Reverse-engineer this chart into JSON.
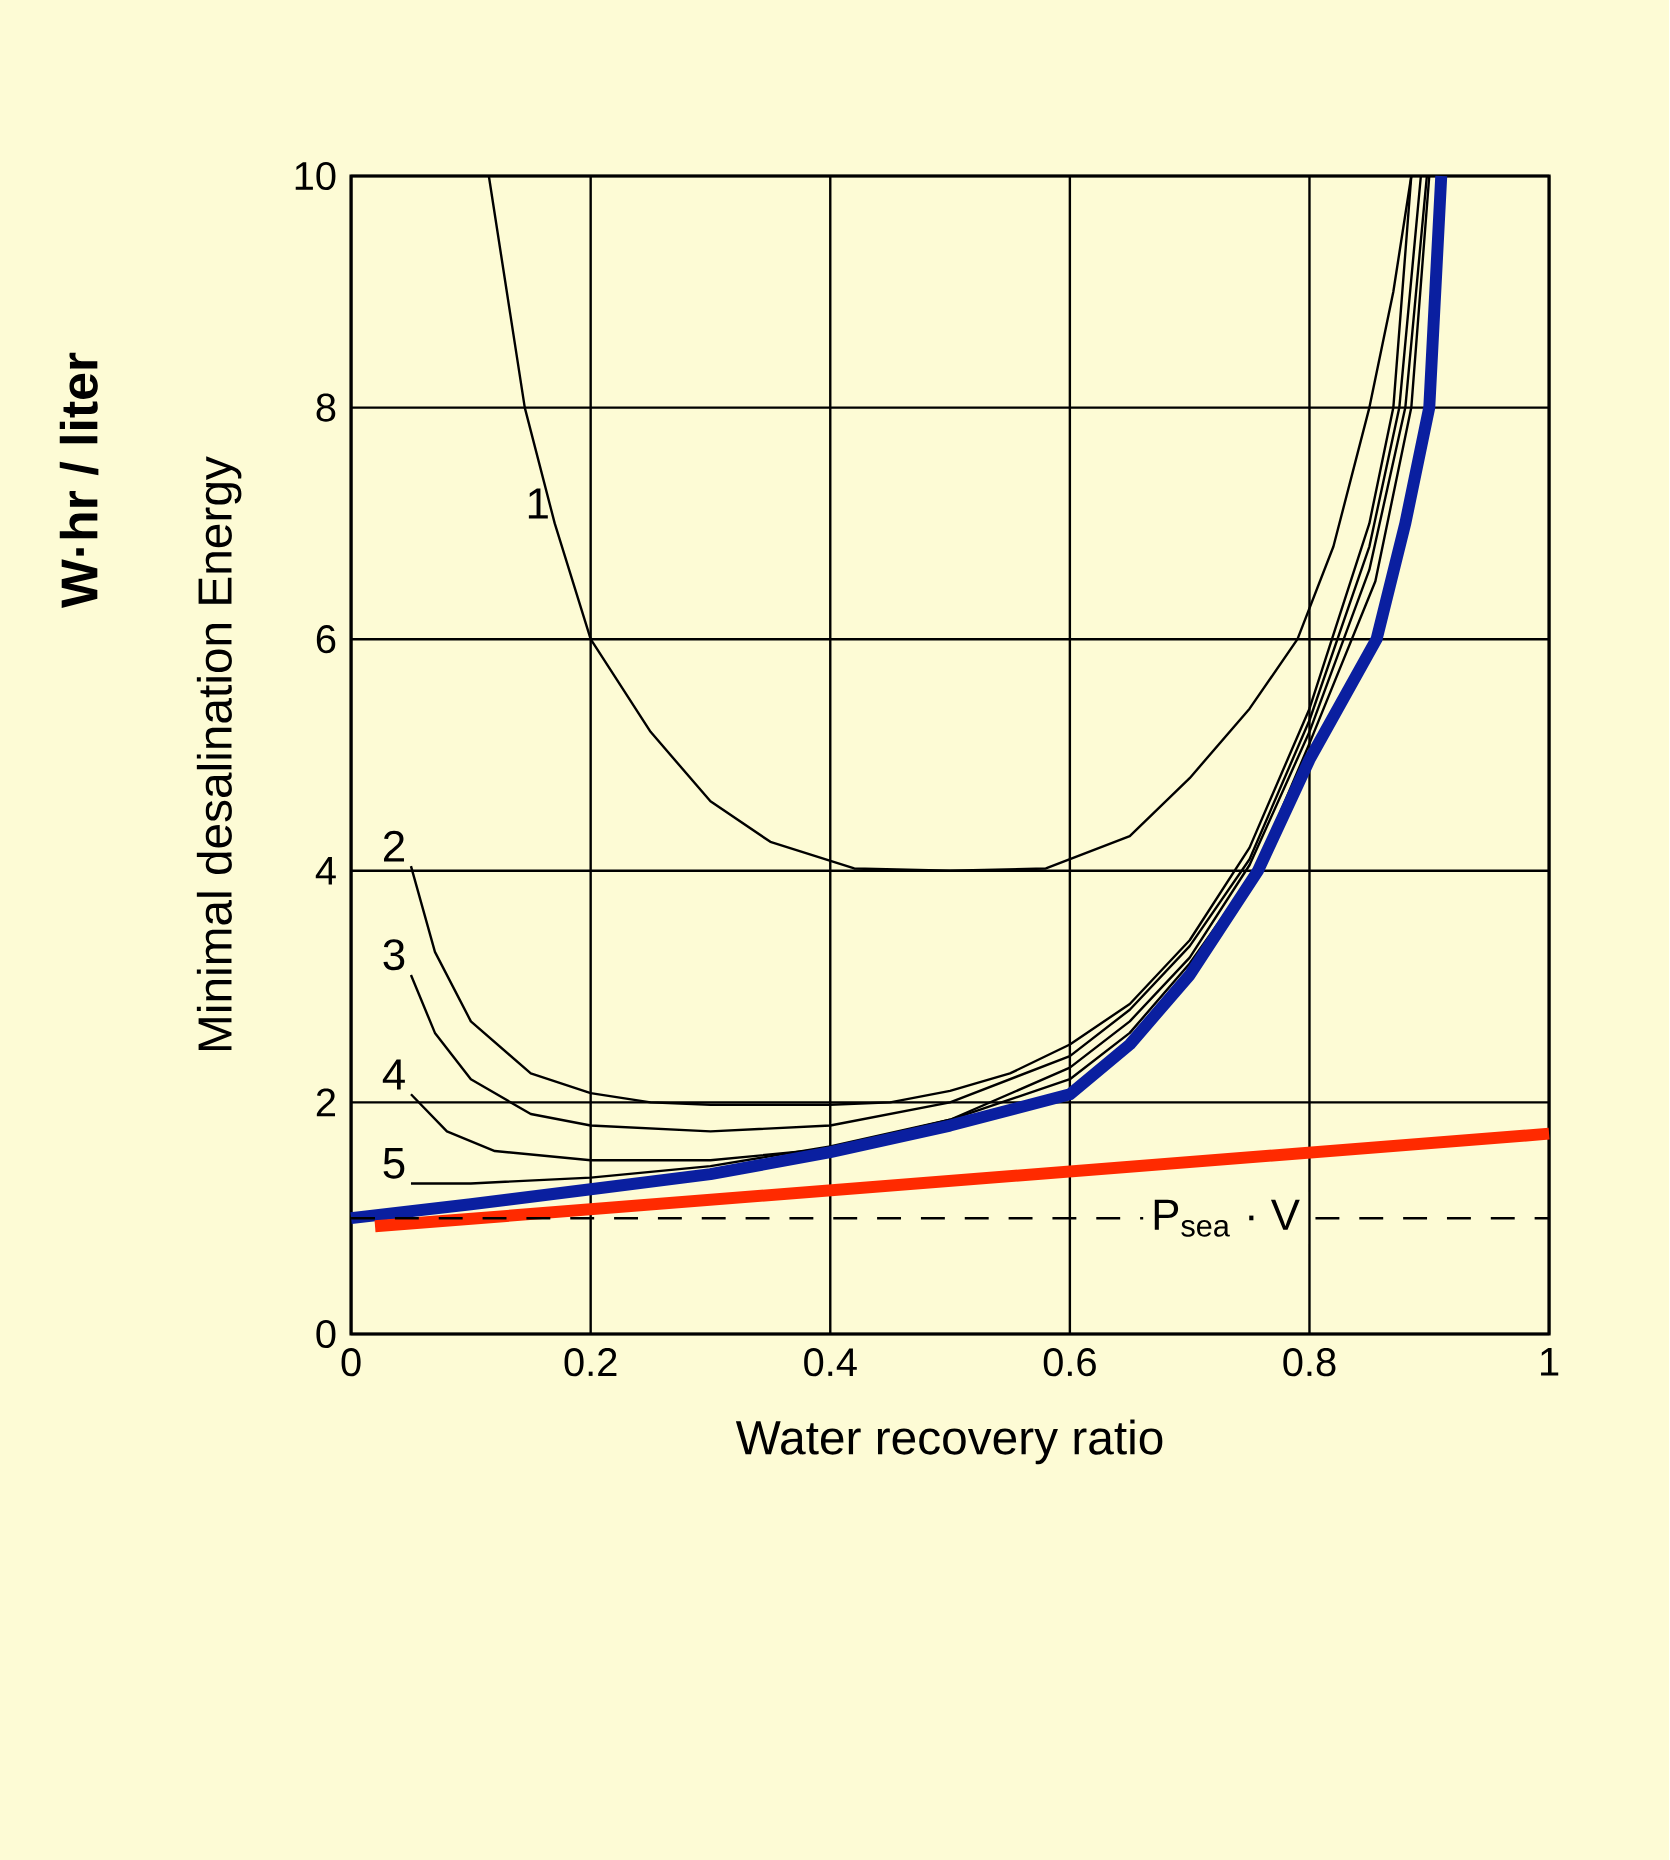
{
  "chart_data": {
    "type": "line",
    "xlabel": "Water recovery ratio",
    "ylabel": "Minimal desalination Energy",
    "annotations": [
      "W·hr / liter"
    ],
    "xlim": [
      0,
      1
    ],
    "ylim": [
      0,
      10
    ],
    "xticks": [
      0,
      0.2,
      0.4,
      0.6,
      0.8,
      1
    ],
    "yticks": [
      0,
      2,
      4,
      6,
      8,
      10
    ],
    "grid": true,
    "ref_lines": [
      {
        "axis": "y",
        "value": 1,
        "label": "P$_{sea}$ · V",
        "line_style": "dashed",
        "color": "#000000"
      }
    ],
    "series": [
      {
        "name": "1",
        "color": "#000000",
        "x": [
          0.115,
          0.13,
          0.145,
          0.17,
          0.2,
          0.25,
          0.3,
          0.35,
          0.42,
          0.5,
          0.58,
          0.65,
          0.7,
          0.75,
          0.79,
          0.82,
          0.85,
          0.87,
          0.885
        ],
        "values": [
          10,
          9,
          8,
          7,
          6,
          5.2,
          4.6,
          4.25,
          4.02,
          4.0,
          4.02,
          4.3,
          4.8,
          5.4,
          6,
          6.8,
          8,
          9,
          10
        ]
      },
      {
        "name": "2",
        "color": "#000000",
        "x": [
          0.05,
          0.07,
          0.1,
          0.15,
          0.2,
          0.25,
          0.3,
          0.4,
          0.45,
          0.5,
          0.55,
          0.6,
          0.65,
          0.7,
          0.75,
          0.8,
          0.85,
          0.87,
          0.885
        ],
        "values": [
          4.04,
          3.3,
          2.7,
          2.25,
          2.08,
          2.0,
          1.98,
          1.98,
          2.0,
          2.1,
          2.25,
          2.5,
          2.85,
          3.4,
          4.2,
          5.4,
          7.0,
          8.0,
          10
        ]
      },
      {
        "name": "3",
        "color": "#000000",
        "x": [
          0.05,
          0.07,
          0.1,
          0.15,
          0.2,
          0.3,
          0.4,
          0.5,
          0.6,
          0.65,
          0.7,
          0.75,
          0.8,
          0.85,
          0.875,
          0.893
        ],
        "values": [
          3.1,
          2.6,
          2.2,
          1.9,
          1.8,
          1.75,
          1.8,
          2.0,
          2.4,
          2.8,
          3.35,
          4.1,
          5.3,
          6.8,
          8,
          10
        ]
      },
      {
        "name": "4",
        "color": "#000000",
        "x": [
          0.05,
          0.08,
          0.12,
          0.2,
          0.3,
          0.4,
          0.5,
          0.6,
          0.65,
          0.7,
          0.75,
          0.8,
          0.85,
          0.88,
          0.898
        ],
        "values": [
          2.07,
          1.75,
          1.58,
          1.5,
          1.5,
          1.6,
          1.85,
          2.3,
          2.7,
          3.25,
          4.05,
          5.2,
          6.6,
          8,
          10
        ]
      },
      {
        "name": "5",
        "color": "#000000",
        "x": [
          0.05,
          0.1,
          0.2,
          0.3,
          0.4,
          0.5,
          0.6,
          0.65,
          0.7,
          0.755,
          0.8,
          0.855,
          0.885,
          0.9
        ],
        "values": [
          1.3,
          1.3,
          1.35,
          1.45,
          1.62,
          1.85,
          2.2,
          2.6,
          3.2,
          4.0,
          5.1,
          6.5,
          8,
          10
        ]
      },
      {
        "color": "#0a1fa0",
        "x": [
          0,
          0.1,
          0.2,
          0.3,
          0.4,
          0.5,
          0.6,
          0.65,
          0.7,
          0.757,
          0.8,
          0.856,
          0.88,
          0.9,
          0.91
        ],
        "values": [
          1.0,
          1.12,
          1.25,
          1.38,
          1.57,
          1.8,
          2.07,
          2.5,
          3.1,
          4.0,
          4.96,
          6,
          7,
          8,
          10
        ]
      },
      {
        "color": "#ff2a00",
        "x": [
          0.02,
          1
        ],
        "values": [
          0.93,
          1.73
        ]
      }
    ]
  }
}
